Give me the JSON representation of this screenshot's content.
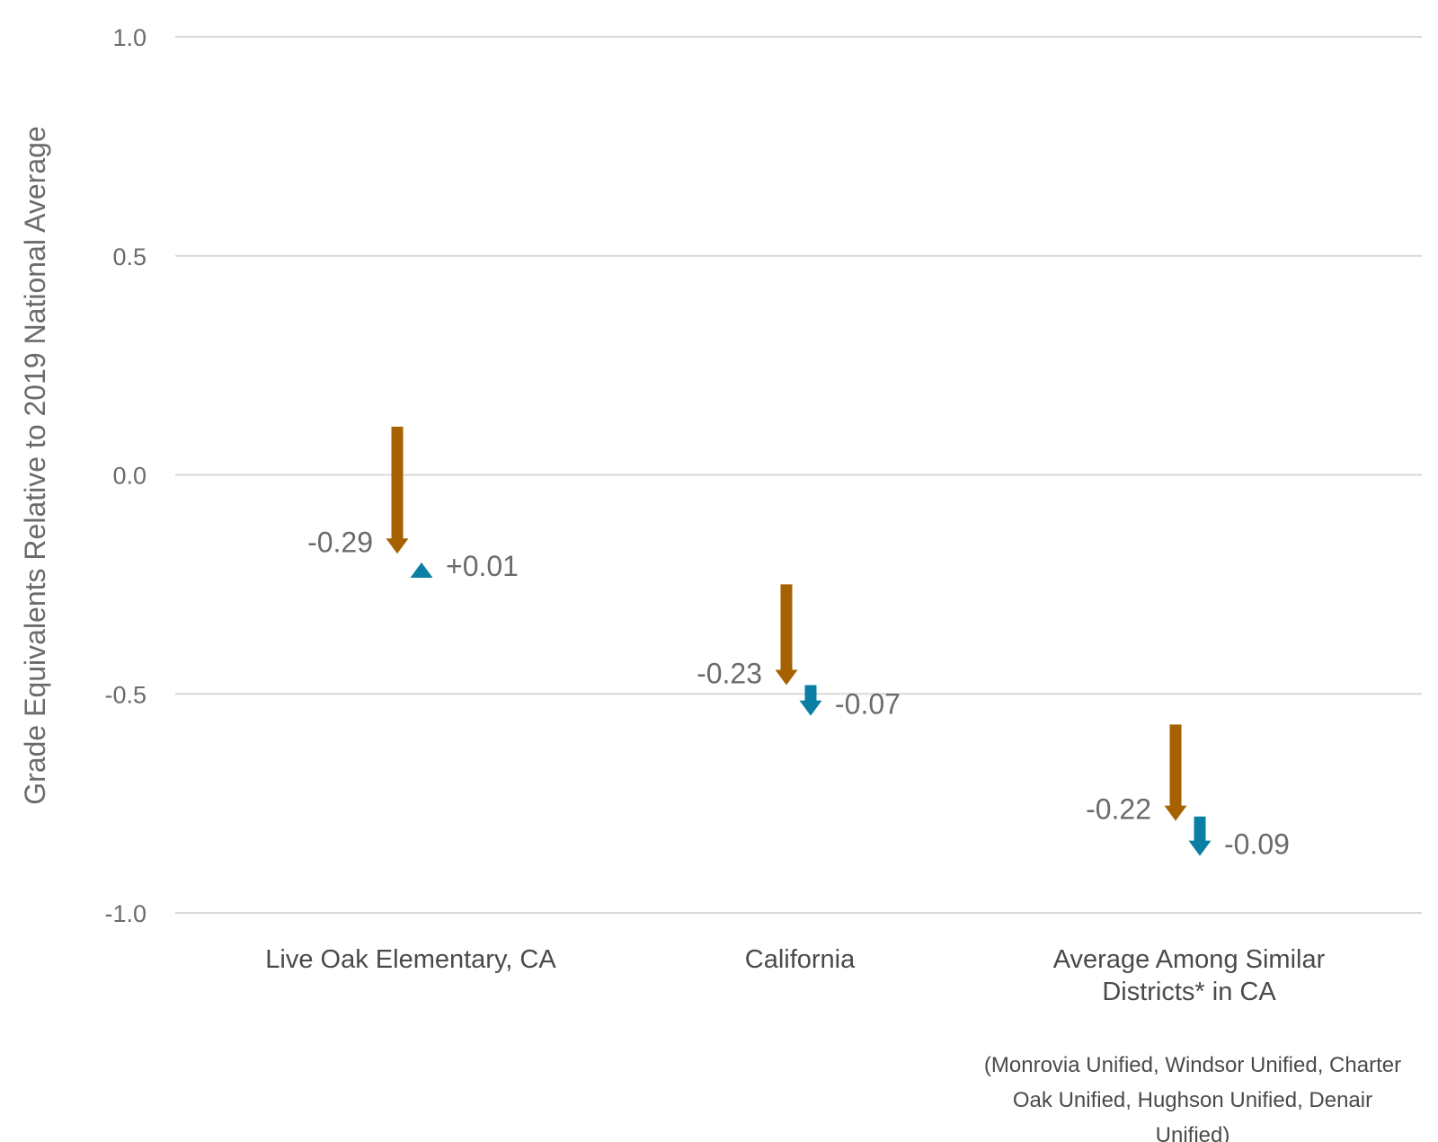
{
  "chart_data": {
    "type": "arrow",
    "ylabel": "Grade Equivalents Relative to 2019 National Average",
    "ylim": [
      -1.0,
      1.0
    ],
    "yticks": [
      "1.0",
      "0.5",
      "0.0",
      "-0.5",
      "-1.0"
    ],
    "ytick_values": [
      1.0,
      0.5,
      0.0,
      -0.5,
      -1.0
    ],
    "grid": true,
    "categories": [
      [
        "Live Oak Elementary, CA"
      ],
      [
        "California"
      ],
      [
        "Average Among Similar",
        "Districts* in CA"
      ]
    ],
    "category_note": [
      "(Monrovia Unified, Windsor Unified, Charter",
      "Oak Unified, Hughson Unified, Denair",
      "Unified)"
    ],
    "series": [
      {
        "color": "#a66200",
        "start": [
          0.11,
          -0.25,
          -0.57
        ],
        "change": [
          -0.29,
          -0.23,
          -0.22
        ],
        "labels": [
          "-0.29",
          "-0.23",
          "-0.22"
        ]
      },
      {
        "color": "#0a7fa3",
        "start": [
          -0.21,
          -0.48,
          -0.78
        ],
        "change": [
          0.01,
          -0.07,
          -0.09
        ],
        "labels": [
          "+0.01",
          "-0.07",
          "-0.09"
        ]
      }
    ]
  }
}
